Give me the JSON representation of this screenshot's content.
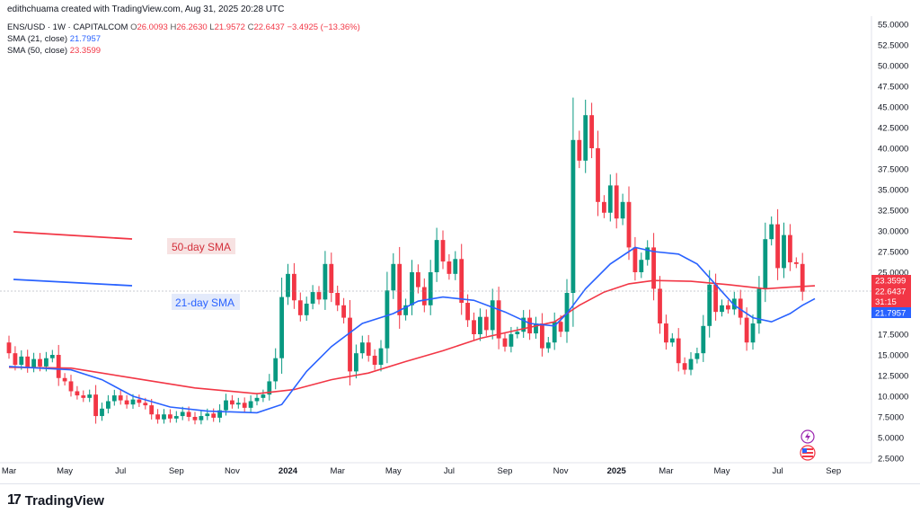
{
  "header": {
    "credit": "edithchuama created with TradingView.com, Aug 31, 2025 20:28 UTC"
  },
  "legend": {
    "symbol": "ENS/USD · 1W · CAPITALCOM",
    "open_label": "O",
    "open": "26.0093",
    "high_label": "H",
    "high": "26.2630",
    "low_label": "L",
    "low": "21.9572",
    "close_label": "C",
    "close": "22.6437",
    "change": "−3.4925 (−13.36%)",
    "sma21_label": "SMA (21, close)",
    "sma21_value": "21.7957",
    "sma50_label": "SMA (50, close)",
    "sma50_value": "23.3599"
  },
  "annotations": {
    "sma50_text": "50-day SMA",
    "sma21_text": "21-day SMA"
  },
  "price_badges": {
    "sma50": "23.3599",
    "close": "22.6437",
    "countdown": "31:15",
    "sma21": "21.7957"
  },
  "footer": {
    "brand": "TradingView",
    "logo_glyph": "17"
  },
  "colors": {
    "up": "#089981",
    "down": "#f23645",
    "sma21": "#2962ff",
    "sma50": "#f23645"
  },
  "chart_data": {
    "type": "candlestick",
    "symbol": "ENS/USD",
    "timeframe": "1W",
    "y_axis": {
      "ticks": [
        "55.0000",
        "52.5000",
        "50.0000",
        "47.5000",
        "45.0000",
        "42.5000",
        "40.0000",
        "37.5000",
        "35.0000",
        "32.5000",
        "30.0000",
        "27.5000",
        "25.0000",
        "17.5000",
        "15.0000",
        "12.5000",
        "10.0000",
        "7.5000",
        "5.0000",
        "2.5000"
      ],
      "tick_values": [
        55,
        52.5,
        50,
        47.5,
        45,
        42.5,
        40,
        37.5,
        35,
        32.5,
        30,
        27.5,
        25,
        17.5,
        15,
        12.5,
        10,
        7.5,
        5,
        2.5
      ],
      "ylim": [
        2.5,
        55
      ]
    },
    "x_axis": {
      "labels": [
        "Mar",
        "May",
        "Jul",
        "Sep",
        "Nov",
        "2024",
        "Mar",
        "May",
        "Jul",
        "Sep",
        "Nov",
        "2025",
        "Mar",
        "May",
        "Jul",
        "Sep"
      ],
      "label_index": [
        0,
        9,
        18,
        27,
        36,
        45,
        53,
        62,
        71,
        80,
        89,
        98,
        106,
        115,
        124,
        133
      ]
    },
    "candles": [
      [
        16.5,
        15.2
      ],
      [
        15.2,
        13.8
      ],
      [
        13.8,
        14.8
      ],
      [
        14.8,
        13.5
      ],
      [
        13.5,
        14.5
      ],
      [
        14.5,
        13.6
      ],
      [
        13.6,
        14.6
      ],
      [
        14.6,
        15.0
      ],
      [
        15.0,
        12.2
      ],
      [
        12.2,
        11.8
      ],
      [
        11.8,
        10.6
      ],
      [
        10.6,
        10.1
      ],
      [
        10.1,
        9.8
      ],
      [
        9.8,
        10.2
      ],
      [
        10.2,
        7.6
      ],
      [
        7.6,
        8.5
      ],
      [
        8.5,
        9.4
      ],
      [
        9.4,
        10.1
      ],
      [
        10.1,
        9.5
      ],
      [
        9.5,
        9.0
      ],
      [
        9.0,
        9.6
      ],
      [
        9.6,
        9.2
      ],
      [
        9.2,
        8.9
      ],
      [
        8.9,
        7.8
      ],
      [
        7.8,
        7.2
      ],
      [
        7.2,
        7.8
      ],
      [
        7.8,
        7.3
      ],
      [
        7.3,
        7.6
      ],
      [
        7.6,
        8.1
      ],
      [
        8.1,
        7.5
      ],
      [
        7.5,
        7.1
      ],
      [
        7.1,
        7.6
      ],
      [
        7.6,
        7.9
      ],
      [
        7.9,
        7.4
      ],
      [
        7.4,
        8.3
      ],
      [
        8.3,
        9.5
      ],
      [
        9.5,
        9.0
      ],
      [
        9.0,
        9.2
      ],
      [
        9.2,
        8.6
      ],
      [
        8.6,
        9.4
      ],
      [
        9.4,
        9.8
      ],
      [
        9.8,
        10.2
      ],
      [
        10.2,
        11.8
      ],
      [
        11.8,
        14.6
      ],
      [
        14.6,
        22.0
      ],
      [
        22.0,
        24.8
      ],
      [
        24.8,
        21.6
      ],
      [
        21.6,
        19.8
      ],
      [
        19.8,
        21.2
      ],
      [
        21.2,
        22.6
      ],
      [
        22.6,
        21.7
      ],
      [
        21.7,
        26.0
      ],
      [
        26.0,
        22.5
      ],
      [
        22.5,
        21.0
      ],
      [
        21.0,
        19.5
      ],
      [
        19.5,
        13.0
      ],
      [
        13.0,
        15.2
      ],
      [
        15.2,
        16.5
      ],
      [
        16.5,
        14.9
      ],
      [
        14.9,
        13.8
      ],
      [
        13.8,
        15.8
      ],
      [
        15.8,
        22.8
      ],
      [
        22.8,
        26.0
      ],
      [
        26.0,
        19.8
      ],
      [
        19.8,
        21.0
      ],
      [
        21.0,
        25.0
      ],
      [
        25.0,
        23.2
      ],
      [
        23.2,
        21.0
      ],
      [
        21.0,
        25.0
      ],
      [
        25.0,
        28.9
      ],
      [
        28.9,
        26.3
      ],
      [
        26.3,
        24.8
      ],
      [
        24.8,
        26.6
      ],
      [
        26.6,
        21.3
      ],
      [
        21.3,
        19.2
      ],
      [
        19.2,
        17.5
      ],
      [
        17.5,
        19.6
      ],
      [
        19.6,
        18.0
      ],
      [
        18.0,
        21.6
      ],
      [
        21.6,
        17.0
      ],
      [
        17.0,
        16.0
      ],
      [
        16.0,
        17.5
      ],
      [
        17.5,
        17.8
      ],
      [
        17.8,
        19.5
      ],
      [
        19.5,
        17.6
      ],
      [
        17.6,
        18.8
      ],
      [
        18.8,
        15.8
      ],
      [
        15.8,
        16.5
      ],
      [
        16.5,
        19.0
      ],
      [
        19.0,
        17.8
      ],
      [
        17.8,
        22.5
      ],
      [
        22.5,
        41.0
      ],
      [
        41.0,
        38.5
      ],
      [
        38.5,
        44.0
      ],
      [
        44.0,
        40.0
      ],
      [
        40.0,
        33.5
      ],
      [
        33.5,
        32.2
      ],
      [
        32.2,
        35.5
      ],
      [
        35.5,
        31.5
      ],
      [
        31.5,
        33.5
      ],
      [
        33.5,
        28.0
      ],
      [
        28.0,
        25.0
      ],
      [
        25.0,
        26.5
      ],
      [
        26.5,
        28.0
      ],
      [
        28.0,
        23.0
      ],
      [
        23.0,
        18.8
      ],
      [
        18.8,
        16.5
      ],
      [
        16.5,
        17.0
      ],
      [
        17.0,
        14.0
      ],
      [
        14.0,
        13.2
      ],
      [
        13.2,
        14.5
      ],
      [
        14.5,
        15.2
      ],
      [
        15.2,
        18.5
      ],
      [
        18.5,
        23.5
      ],
      [
        23.5,
        20.2
      ],
      [
        20.2,
        21.0
      ],
      [
        21.0,
        20.5
      ],
      [
        20.5,
        21.8
      ],
      [
        21.8,
        19.5
      ],
      [
        19.5,
        16.5
      ],
      [
        16.5,
        18.8
      ],
      [
        18.8,
        23.0
      ],
      [
        23.0,
        29.0
      ],
      [
        29.0,
        30.8
      ],
      [
        30.8,
        25.5
      ],
      [
        25.5,
        29.5
      ],
      [
        29.5,
        26.2
      ],
      [
        26.2,
        26.0
      ],
      [
        26.0,
        22.64
      ]
    ],
    "sma21": [
      [
        0,
        13.6
      ],
      [
        10,
        13.2
      ],
      [
        15,
        12.0
      ],
      [
        20,
        10.0
      ],
      [
        26,
        8.7
      ],
      [
        32,
        8.2
      ],
      [
        40,
        8.0
      ],
      [
        44,
        9.0
      ],
      [
        48,
        13.0
      ],
      [
        52,
        16.0
      ],
      [
        57,
        18.8
      ],
      [
        62,
        20.0
      ],
      [
        66,
        21.5
      ],
      [
        70,
        22.0
      ],
      [
        75,
        21.6
      ],
      [
        80,
        20.2
      ],
      [
        84,
        18.8
      ],
      [
        88,
        18.5
      ],
      [
        90,
        20.0
      ],
      [
        93,
        23.0
      ],
      [
        97,
        26.0
      ],
      [
        101,
        28.0
      ],
      [
        104,
        27.5
      ],
      [
        108,
        27.2
      ],
      [
        111,
        26.0
      ],
      [
        114,
        23.5
      ],
      [
        117,
        21.0
      ],
      [
        120,
        19.5
      ],
      [
        123,
        19.0
      ],
      [
        126,
        20.0
      ],
      [
        128,
        21.0
      ],
      [
        130,
        21.8
      ]
    ],
    "sma50": [
      [
        0,
        13.5
      ],
      [
        10,
        13.4
      ],
      [
        20,
        12.2
      ],
      [
        30,
        11.0
      ],
      [
        40,
        10.3
      ],
      [
        46,
        10.8
      ],
      [
        52,
        12.0
      ],
      [
        58,
        12.8
      ],
      [
        64,
        14.2
      ],
      [
        70,
        15.5
      ],
      [
        76,
        17.0
      ],
      [
        82,
        18.0
      ],
      [
        88,
        19.0
      ],
      [
        92,
        21.0
      ],
      [
        96,
        22.6
      ],
      [
        100,
        23.6
      ],
      [
        104,
        24.0
      ],
      [
        110,
        23.9
      ],
      [
        116,
        23.5
      ],
      [
        122,
        23.0
      ],
      [
        126,
        23.2
      ],
      [
        130,
        23.36
      ]
    ]
  }
}
